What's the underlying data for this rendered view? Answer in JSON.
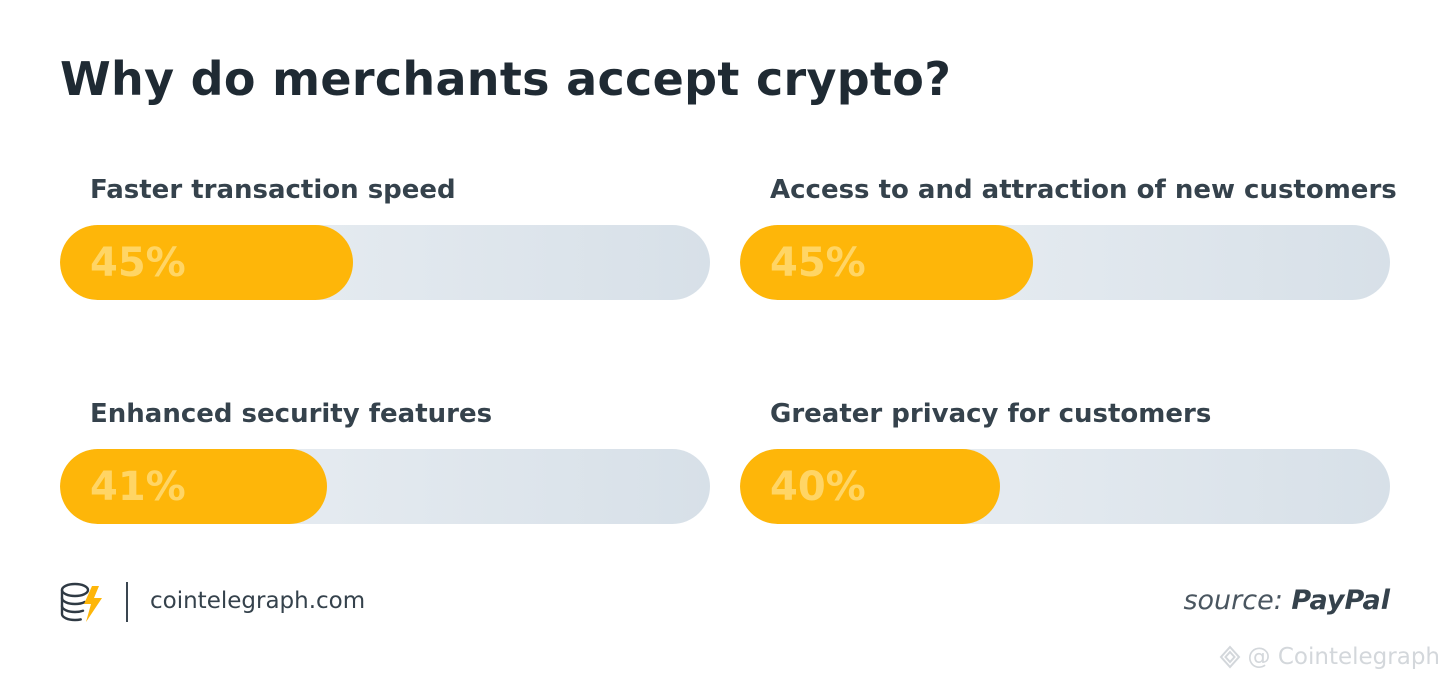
{
  "title": "Why do merchants accept crypto?",
  "chart_data": {
    "type": "bar",
    "orientation": "horizontal",
    "title": "Why do merchants accept crypto?",
    "categories": [
      "Faster transaction speed",
      "Access to and attraction of new customers",
      "Enhanced security features",
      "Greater privacy for customers"
    ],
    "values": [
      45,
      45,
      41,
      40
    ],
    "value_labels": [
      "45%",
      "45%",
      "41%",
      "40%"
    ],
    "unit": "%",
    "xlim": [
      0,
      100
    ],
    "grid": false,
    "layout": "2x2"
  },
  "footer": {
    "site": "cointelegraph.com",
    "logo_icon": "cointelegraph-logo-icon",
    "source_label": "source:",
    "source_name": "PayPal"
  },
  "watermark": {
    "text": "@ Cointelegraph",
    "icon": "watermark-logo-icon"
  },
  "colors": {
    "bar_fill": "#feb609",
    "track_start": "#edf1f5",
    "track_end": "#d7e0e8",
    "value_label": "#ffd565",
    "title": "#1f2a33"
  }
}
